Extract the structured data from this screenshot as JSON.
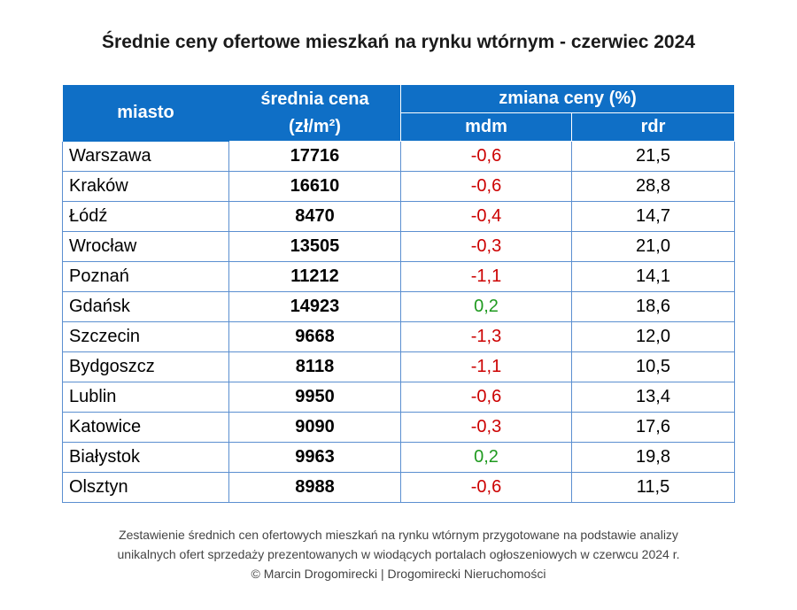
{
  "title": "Średnie ceny ofertowe mieszkań na rynku wtórnym - czerwiec 2024",
  "headers": {
    "city": "miasto",
    "price_line1": "średnia cena",
    "price_line2": "(zł/m²)",
    "change": "zmiana ceny (%)",
    "mdm": "mdm",
    "rdr": "rdr"
  },
  "colors": {
    "header_bg": "#0f6fc6",
    "negative": "#cc0000",
    "positive": "#1f9a1f"
  },
  "chart_data": {
    "type": "table",
    "title": "Średnie ceny ofertowe mieszkań na rynku wtórnym - czerwiec 2024",
    "columns": [
      "miasto",
      "średnia cena (zł/m²)",
      "mdm",
      "rdr"
    ],
    "rows": [
      {
        "city": "Warszawa",
        "price": "17716",
        "mdm": "-0,6",
        "rdr": "21,5"
      },
      {
        "city": "Kraków",
        "price": "16610",
        "mdm": "-0,6",
        "rdr": "28,8"
      },
      {
        "city": "Łódź",
        "price": "8470",
        "mdm": "-0,4",
        "rdr": "14,7"
      },
      {
        "city": "Wrocław",
        "price": "13505",
        "mdm": "-0,3",
        "rdr": "21,0"
      },
      {
        "city": "Poznań",
        "price": "11212",
        "mdm": "-1,1",
        "rdr": "14,1"
      },
      {
        "city": "Gdańsk",
        "price": "14923",
        "mdm": "0,2",
        "rdr": "18,6"
      },
      {
        "city": "Szczecin",
        "price": "9668",
        "mdm": "-1,3",
        "rdr": "12,0"
      },
      {
        "city": "Bydgoszcz",
        "price": "8118",
        "mdm": "-1,1",
        "rdr": "10,5"
      },
      {
        "city": "Lublin",
        "price": "9950",
        "mdm": "-0,6",
        "rdr": "13,4"
      },
      {
        "city": "Katowice",
        "price": "9090",
        "mdm": "-0,3",
        "rdr": "17,6"
      },
      {
        "city": "Białystok",
        "price": "9963",
        "mdm": "0,2",
        "rdr": "19,8"
      },
      {
        "city": "Olsztyn",
        "price": "8988",
        "mdm": "-0,6",
        "rdr": "11,5"
      }
    ]
  },
  "footnote": {
    "line1": "Zestawienie średnich cen ofertowych mieszkań na rynku wtórnym przygotowane na podstawie analizy",
    "line2": "unikalnych ofert sprzedaży prezentowanych w wiodących portalach ogłoszeniowych w czerwcu 2024 r.",
    "line3": "© Marcin Drogomirecki | Drogomirecki Nieruchomości"
  }
}
